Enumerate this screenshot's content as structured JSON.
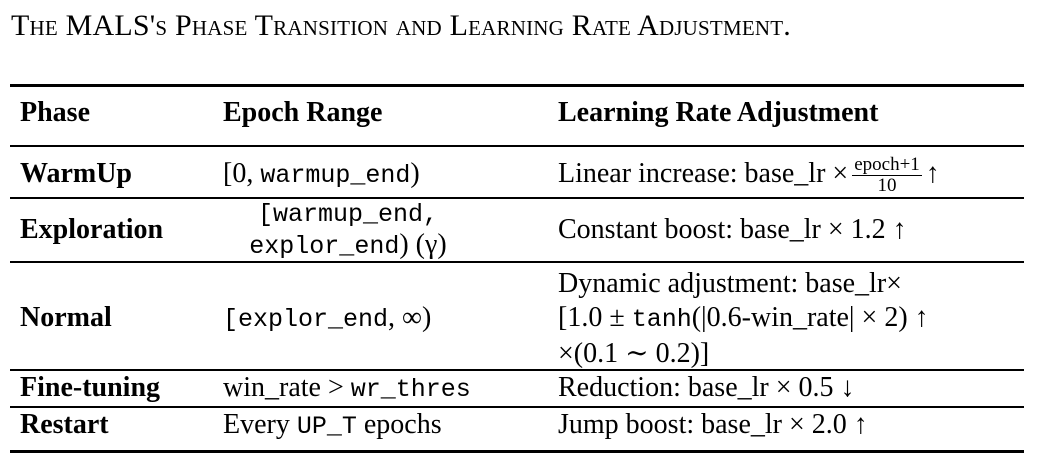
{
  "caption": "The MALS's Phase Transition and Learning Rate Adjustment.",
  "headers": [
    "Phase",
    "Epoch Range",
    "Learning Rate Adjustment"
  ],
  "rows": [
    {
      "phase": "WarmUp",
      "range": {
        "pre": "[0, ",
        "code": "warmup_end",
        "post": ")"
      },
      "adj": {
        "pre": "Linear increase: base_lr ×",
        "frac_num": "epoch+1",
        "frac_den": "10",
        "post": "↑"
      }
    },
    {
      "phase": "Exploration",
      "range": {
        "line1": "[warmup_end,",
        "line2_code": "explor_end",
        "line2_post": ") (γ)"
      },
      "adj": {
        "text": "Constant boost: base_lr × 1.2 ↑"
      }
    },
    {
      "phase": "Normal",
      "range": {
        "code": "[explor_end",
        "post": ", ∞)"
      },
      "adj": {
        "line1": "Dynamic adjustment: base_lr×",
        "line2_pre": "[1.0 ± ",
        "line2_code": "tanh",
        "line2_post": "(|0.6-win_rate| × 2) ↑",
        "line3": "×(0.1 ∼ 0.2)]"
      }
    },
    {
      "phase": "Fine-tuning",
      "range": {
        "pre": "win_rate > ",
        "code": "wr_thres"
      },
      "adj": {
        "text": "Reduction: base_lr × 0.5 ↓"
      }
    },
    {
      "phase": "Restart",
      "range": {
        "pre": "Every ",
        "code": "UP_T",
        "post": " epochs"
      },
      "adj": {
        "text": "Jump boost: base_lr × 2.0 ↑"
      }
    }
  ]
}
